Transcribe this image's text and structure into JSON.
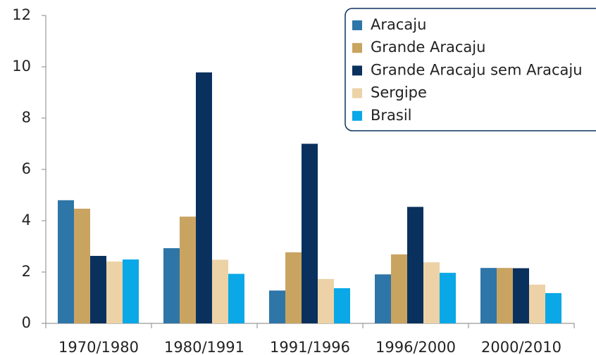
{
  "chart_data": {
    "type": "bar",
    "categories": [
      "1970/1980",
      "1980/1991",
      "1991/1996",
      "1996/2000",
      "2000/2010"
    ],
    "series": [
      {
        "name": "Aracaju",
        "color": "#2e75a8",
        "values": [
          4.8,
          2.93,
          1.28,
          1.91,
          2.16
        ]
      },
      {
        "name": "Grande Aracaju",
        "color": "#c9a461",
        "values": [
          4.47,
          4.16,
          2.77,
          2.69,
          2.16
        ]
      },
      {
        "name": "Grande Aracaju sem Aracaju",
        "color": "#0a315e",
        "values": [
          2.63,
          9.78,
          7.0,
          4.54,
          2.15
        ]
      },
      {
        "name": "Sergipe",
        "color": "#ecd2a6",
        "values": [
          2.41,
          2.48,
          1.73,
          2.38,
          1.51
        ]
      },
      {
        "name": "Brasil",
        "color": "#0aa8e6",
        "values": [
          2.49,
          1.93,
          1.37,
          1.97,
          1.18
        ]
      }
    ],
    "ylim": [
      0,
      12
    ],
    "yticks": [
      0,
      2,
      4,
      6,
      8,
      10,
      12
    ],
    "legend": "top-right"
  }
}
